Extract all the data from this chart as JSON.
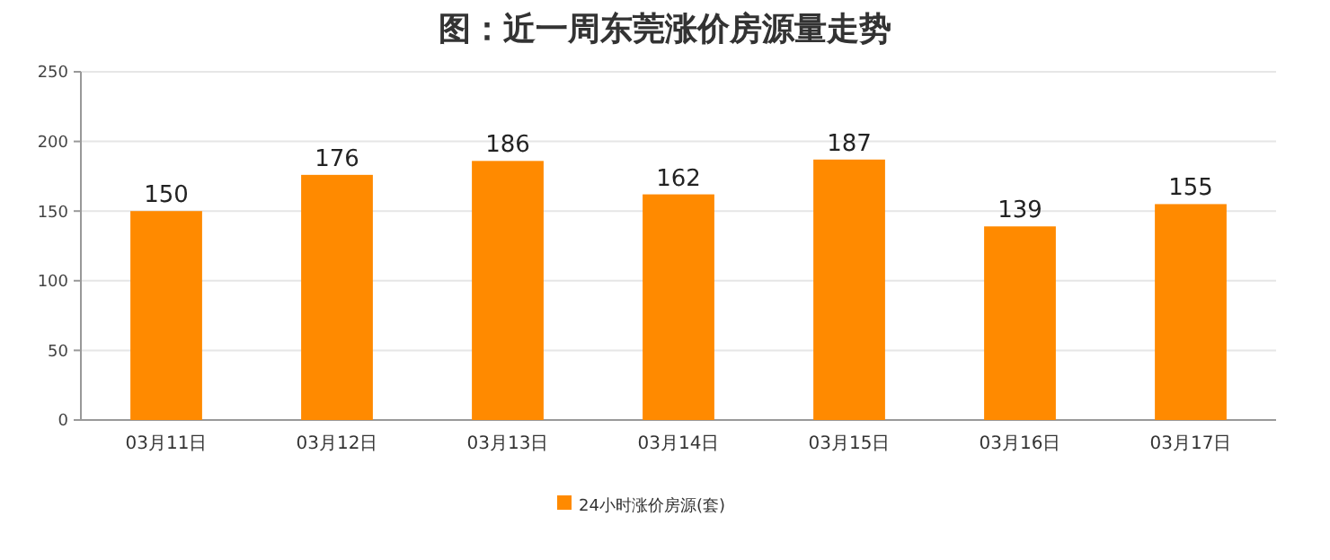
{
  "chart_data": {
    "type": "bar",
    "title": "图：近一周东莞涨价房源量走势",
    "categories": [
      "03月11日",
      "03月12日",
      "03月13日",
      "03月14日",
      "03月15日",
      "03月16日",
      "03月17日"
    ],
    "series": [
      {
        "name": "24小时涨价房源(套)",
        "color": "#ff8a00",
        "values": [
          150,
          176,
          186,
          162,
          187,
          139,
          155
        ]
      }
    ],
    "ylim": [
      0,
      250
    ],
    "yticks": [
      0,
      50,
      100,
      150,
      200,
      250
    ],
    "grid": "y",
    "legend": "bottom",
    "data_labels": true
  }
}
